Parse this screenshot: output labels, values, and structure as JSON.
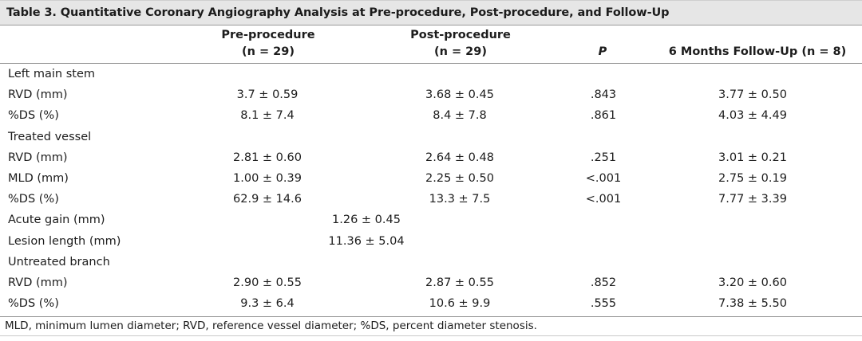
{
  "table": {
    "title": "Table 3.  Quantitative Coronary Angiography Analysis at Pre-procedure, Post-procedure, and Follow-Up",
    "headers": {
      "pre": {
        "line1": "Pre-procedure",
        "line2": "(n = 29)"
      },
      "post": {
        "line1": "Post-procedure",
        "line2": "(n = 29)"
      },
      "p": "P",
      "follow": "6 Months Follow-Up (n = 8)"
    },
    "rows": [
      {
        "label": "Left main stem",
        "pre": "",
        "post": "",
        "p": "",
        "follow": "",
        "mid": ""
      },
      {
        "label": "RVD (mm)",
        "pre": "3.7 ± 0.59",
        "post": "3.68 ± 0.45",
        "p": ".843",
        "follow": "3.77 ± 0.50",
        "mid": ""
      },
      {
        "label": "%DS (%)",
        "pre": "8.1 ± 7.4",
        "post": "8.4 ± 7.8",
        "p": ".861",
        "follow": "4.03 ± 4.49",
        "mid": ""
      },
      {
        "label": "Treated vessel",
        "pre": "",
        "post": "",
        "p": "",
        "follow": "",
        "mid": ""
      },
      {
        "label": "RVD (mm)",
        "pre": "2.81 ± 0.60",
        "post": "2.64 ± 0.48",
        "p": ".251",
        "follow": "3.01 ± 0.21",
        "mid": ""
      },
      {
        "label": "MLD (mm)",
        "pre": "1.00 ± 0.39",
        "post": "2.25 ± 0.50",
        "p": "<.001",
        "follow": "2.75 ± 0.19",
        "mid": ""
      },
      {
        "label": "%DS (%)",
        "pre": "62.9 ± 14.6",
        "post": "13.3 ± 7.5",
        "p": "<.001",
        "follow": "7.77 ± 3.39",
        "mid": ""
      },
      {
        "label": "Acute gain (mm)",
        "pre": "",
        "post": "",
        "p": "",
        "follow": "",
        "mid": "1.26 ± 0.45"
      },
      {
        "label": "Lesion length (mm)",
        "pre": "",
        "post": "",
        "p": "",
        "follow": "",
        "mid": "11.36 ± 5.04"
      },
      {
        "label": "Untreated branch",
        "pre": "",
        "post": "",
        "p": "",
        "follow": "",
        "mid": ""
      },
      {
        "label": "RVD (mm)",
        "pre": "2.90 ± 0.55",
        "post": "2.87 ± 0.55",
        "p": ".852",
        "follow": "3.20 ± 0.60",
        "mid": ""
      },
      {
        "label": "%DS (%)",
        "pre": "9.3 ± 6.4",
        "post": "10.6 ± 9.9",
        "p": ".555",
        "follow": "7.38 ± 5.50",
        "mid": ""
      }
    ],
    "footnote": "MLD, minimum lumen diameter; RVD, reference vessel diameter; %DS, percent diameter stenosis."
  }
}
